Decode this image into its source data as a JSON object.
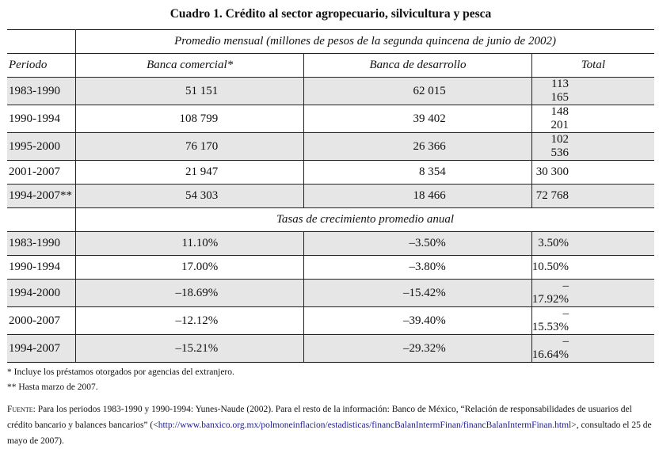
{
  "title": "Cuadro 1. Crédito al sector agropecuario, silvicultura y pesca",
  "section1_header": "Promedio mensual (millones de pesos de la segunda quincena de junio de 2002)",
  "columns": [
    "Periodo",
    "Banca comercial*",
    "Banca de desarrollo",
    "Total"
  ],
  "section1_rows": [
    {
      "period": "1983-1990",
      "comercial": "51 151",
      "desarrollo": "62 015",
      "total": "113 165"
    },
    {
      "period": "1990-1994",
      "comercial": "108 799",
      "desarrollo": "39 402",
      "total": "148 201"
    },
    {
      "period": "1995-2000",
      "comercial": "76 170",
      "desarrollo": "26 366",
      "total": "102 536"
    },
    {
      "period": "2001-2007",
      "comercial": "21 947",
      "desarrollo": "8 354",
      "total": "30 300"
    },
    {
      "period": "1994-2007**",
      "comercial": "54 303",
      "desarrollo": "18 466",
      "total": "72 768"
    }
  ],
  "section2_header": "Tasas de crecimiento promedio anual",
  "section2_rows": [
    {
      "period": "1983-1990",
      "comercial": "11.10%",
      "desarrollo": "–3.50%",
      "total": "3.50%"
    },
    {
      "period": "1990-1994",
      "comercial": "17.00%",
      "desarrollo": "–3.80%",
      "total": "10.50%"
    },
    {
      "period": "1994-2000",
      "comercial": "–18.69%",
      "desarrollo": "–15.42%",
      "total": "–17.92%"
    },
    {
      "period": "2000-2007",
      "comercial": "–12.12%",
      "desarrollo": "–39.40%",
      "total": "–15.53%"
    },
    {
      "period": "1994-2007",
      "comercial": "–15.21%",
      "desarrollo": "–29.32%",
      "total": "–16.64%"
    }
  ],
  "notes": {
    "note1": "* Incluye los préstamos otorgados por agencias del extranjero.",
    "note2": "** Hasta marzo de 2007.",
    "source_label": "Fuente:",
    "source_text": " Para los periodos 1983-1990 y 1990-1994: Yunes-Naude (2002). Para el resto de la información: Banco de México, “Relación de responsabilidades de usuarios del crédito bancario y balances bancarios” (<",
    "source_url": "http://www.banxico.org.mx/polmoneinflacion/estadisticas/financBalanIntermFinan/financBalanIntermFinan.html",
    "source_end": ">, consultado el 25 de mayo de 2007)."
  }
}
